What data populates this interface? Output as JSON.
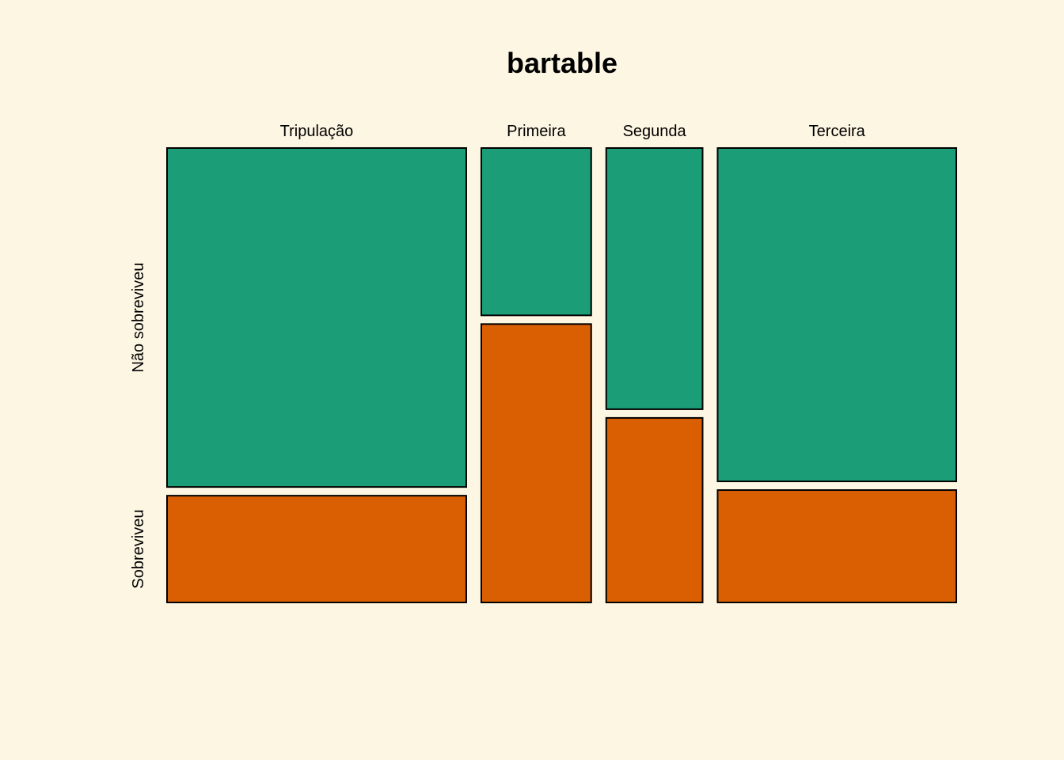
{
  "chart_data": {
    "type": "mosaic",
    "title": "bartable",
    "columns": [
      "Tripulação",
      "Primeira",
      "Segunda",
      "Terceira"
    ],
    "rows": [
      "Não sobreviveu",
      "Sobreviveu"
    ],
    "values": [
      [
        673,
        212
      ],
      [
        122,
        203
      ],
      [
        167,
        118
      ],
      [
        528,
        178
      ]
    ],
    "colors": {
      "Não sobreviveu": "#1b9e77",
      "Sobreviveu": "#d95f02"
    },
    "background": "#fdf6e3"
  }
}
